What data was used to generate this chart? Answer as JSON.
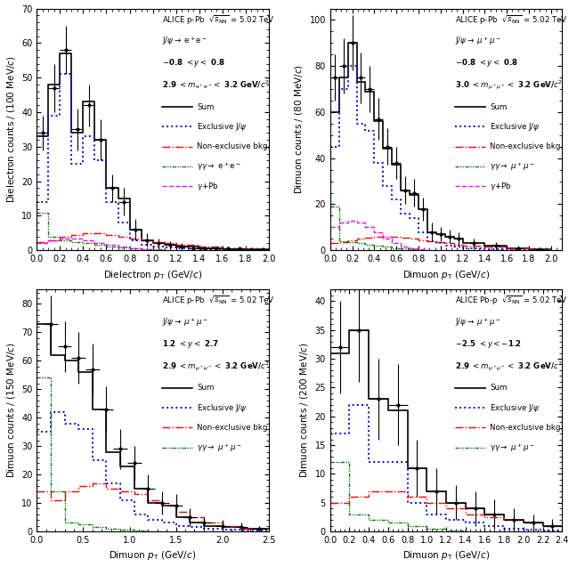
{
  "panels": [
    {
      "title_line1": "ALICE p-Pb  $\\sqrt{s_{\\rm NN}}$ = 5.02 TeV",
      "title_line2": "J/$\\psi\\rightarrow$ e$^+$e$^-$",
      "title_line3": "$-$0.8 $< y <$ 0.8",
      "title_line4": "2.9 $< m_{\\rm e^+e^-} <$ 3.2 GeV/$c^2$",
      "ylabel": "Dielectron counts / (100 MeV/$c$)",
      "xlabel": "Dielectron $p_{\\rm T}$ (GeV/$c$)",
      "xlim": [
        0,
        2
      ],
      "ylim": [
        0,
        70
      ],
      "yticks": [
        0,
        10,
        20,
        30,
        40,
        50,
        60,
        70
      ],
      "xticks": [
        0,
        0.2,
        0.4,
        0.6,
        0.8,
        1.0,
        1.2,
        1.4,
        1.6,
        1.8,
        2.0
      ],
      "has_gamma_pb": true,
      "gamma_label": "$\\gamma\\gamma\\rightarrow$ e$^+$e$^-$",
      "data_x": [
        0.05,
        0.15,
        0.25,
        0.35,
        0.45,
        0.55,
        0.65,
        0.75,
        0.85,
        0.95,
        1.05,
        1.15,
        1.25,
        1.35,
        1.45,
        1.55,
        1.65,
        1.75,
        1.85,
        1.95
      ],
      "data_y": [
        34,
        47,
        58,
        35,
        42,
        32,
        18,
        14,
        6,
        3,
        2,
        1.5,
        1,
        0.5,
        0.5,
        0.5,
        0.5,
        0.5,
        0.3,
        0.2
      ],
      "data_yerr": [
        5,
        7,
        7,
        6,
        6,
        6,
        4,
        4,
        3,
        2,
        1.5,
        1.2,
        1,
        0.8,
        0.7,
        0.6,
        0.5,
        0.4,
        0.4,
        0.3
      ],
      "data_xerr": 0.05,
      "sum_edges": [
        0,
        0.1,
        0.2,
        0.3,
        0.4,
        0.5,
        0.6,
        0.7,
        0.8,
        0.9,
        1.0,
        1.1,
        1.2,
        1.4,
        1.6,
        1.8,
        2.0
      ],
      "sum_vals": [
        33,
        48,
        57,
        34,
        43,
        32,
        18,
        15,
        6,
        3,
        2,
        1.5,
        1,
        0.5,
        0.3,
        0.2
      ],
      "excl_edges": [
        0,
        0.1,
        0.2,
        0.3,
        0.4,
        0.5,
        0.6,
        0.7,
        0.8,
        0.9,
        1.0,
        1.1,
        1.2,
        1.4,
        1.6,
        1.8,
        2.0
      ],
      "excl_vals": [
        14,
        39,
        51,
        25,
        33,
        26,
        14,
        8,
        3,
        1.5,
        1,
        0.8,
        0.5,
        0.2,
        0.1,
        0.05
      ],
      "nonexcl_edges": [
        0,
        0.1,
        0.2,
        0.3,
        0.4,
        0.5,
        0.6,
        0.7,
        0.8,
        0.9,
        1.0,
        1.1,
        1.2,
        1.4,
        1.6,
        1.8,
        2.0
      ],
      "nonexcl_vals": [
        2.5,
        3,
        4,
        4.5,
        5,
        5,
        4.5,
        4,
        3.5,
        3,
        2.5,
        2,
        1.5,
        1,
        0.5,
        0.2
      ],
      "gg_edges": [
        0,
        0.1,
        0.2,
        0.3,
        0.4,
        0.5,
        0.6,
        0.7,
        0.8,
        0.9,
        1.0,
        1.1
      ],
      "gg_vals": [
        11,
        4,
        3,
        2.5,
        2,
        1.5,
        1,
        0.8,
        0.5,
        0.3,
        0.2
      ],
      "gpb_edges": [
        0,
        0.1,
        0.2,
        0.3,
        0.4,
        0.5,
        0.6,
        0.7,
        0.8,
        0.9,
        1.0,
        1.1
      ],
      "gpb_vals": [
        2,
        3,
        3.5,
        3.5,
        3,
        2,
        1.5,
        1,
        0.5,
        0.3,
        0.1
      ]
    },
    {
      "title_line1": "ALICE p-Pb  $\\sqrt{s_{\\rm NN}}$ = 5.02 TeV",
      "title_line2": "J/$\\psi\\rightarrow$ $\\mu^+\\mu^-$",
      "title_line3": "$-$0.8 $< y <$ 0.8",
      "title_line4": "3.0 $< m_{\\mu^+\\mu^-} <$ 3.2 GeV/$c^2$",
      "ylabel": "Dimuon counts / (80 MeV/$c$)",
      "xlabel": "Dimuon $p_{\\rm T}$ (GeV/$c$)",
      "xlim": [
        0,
        2.1
      ],
      "ylim": [
        0,
        105
      ],
      "yticks": [
        0,
        20,
        40,
        60,
        80,
        100
      ],
      "xticks": [
        0,
        0.2,
        0.4,
        0.6,
        0.8,
        1.0,
        1.2,
        1.4,
        1.6,
        1.8,
        2.0
      ],
      "has_gamma_pb": true,
      "gamma_label": "$\\gamma\\gamma\\rightarrow$ $\\mu^+\\mu^-$",
      "data_x": [
        0.04,
        0.12,
        0.2,
        0.28,
        0.36,
        0.44,
        0.52,
        0.6,
        0.68,
        0.76,
        0.84,
        0.92,
        1.0,
        1.08,
        1.16,
        1.3,
        1.5,
        1.7,
        1.9
      ],
      "data_y": [
        75,
        80,
        90,
        75,
        70,
        57,
        45,
        38,
        26,
        25,
        18,
        8,
        7,
        6,
        5,
        3,
        2,
        1,
        0.5
      ],
      "data_yerr": [
        10,
        12,
        12,
        11,
        10,
        9,
        8,
        7,
        6,
        6,
        5,
        4,
        3,
        3,
        3,
        2,
        1.5,
        1,
        0.5
      ],
      "data_xerr": 0.04,
      "sum_edges": [
        0,
        0.08,
        0.16,
        0.24,
        0.32,
        0.4,
        0.48,
        0.56,
        0.64,
        0.72,
        0.8,
        0.88,
        0.96,
        1.04,
        1.12,
        1.2,
        1.4,
        1.6,
        1.8,
        2.0
      ],
      "sum_vals": [
        60,
        75,
        90,
        73,
        69,
        56,
        44,
        37,
        26,
        24,
        18,
        8,
        7,
        6,
        5,
        3,
        2,
        1,
        0.5
      ],
      "excl_edges": [
        0,
        0.08,
        0.16,
        0.24,
        0.32,
        0.4,
        0.48,
        0.56,
        0.64,
        0.72,
        0.8,
        0.88,
        0.96,
        1.04,
        1.12,
        1.2,
        1.4,
        1.6,
        1.8,
        2.0
      ],
      "excl_vals": [
        45,
        70,
        80,
        55,
        52,
        38,
        28,
        22,
        16,
        14,
        8,
        4,
        3,
        2,
        1.5,
        1,
        0.5,
        0.2,
        0.1
      ],
      "nonexcl_edges": [
        0,
        0.08,
        0.16,
        0.24,
        0.32,
        0.4,
        0.48,
        0.56,
        0.64,
        0.72,
        0.8,
        0.88,
        0.96,
        1.04,
        1.12,
        1.2,
        1.4,
        1.6,
        1.8,
        2.0
      ],
      "nonexcl_vals": [
        3,
        3.5,
        4.5,
        5,
        5.5,
        6,
        6,
        6,
        5.5,
        5,
        4.5,
        4,
        3.5,
        3,
        2.5,
        2,
        1.5,
        1,
        0.5
      ],
      "gg_edges": [
        0,
        0.08,
        0.16,
        0.24,
        0.32,
        0.4,
        0.48,
        0.56,
        0.64,
        0.72,
        0.8,
        0.88
      ],
      "gg_vals": [
        19,
        4,
        3.5,
        3,
        2.5,
        2,
        1.5,
        1,
        0.7,
        0.4,
        0.2
      ],
      "gpb_edges": [
        0,
        0.08,
        0.16,
        0.24,
        0.32,
        0.4,
        0.48,
        0.56,
        0.64,
        0.72,
        0.8,
        0.88
      ],
      "gpb_vals": [
        10,
        12,
        13,
        12,
        10,
        8,
        5,
        3,
        1.5,
        0.8,
        0.3
      ]
    },
    {
      "title_line1": "ALICE p-Pb  $\\sqrt{s_{\\rm NN}}$ = 5.02 TeV",
      "title_line2": "J/$\\psi\\rightarrow$ $\\mu^+\\mu^-$",
      "title_line3": "1.2 $< y <$ 2.7",
      "title_line4": "2.9 $< m_{\\mu^+\\mu^-} <$ 3.2 GeV/$c^2$",
      "ylabel": "Dimuon counts / (150 MeV/$c$)",
      "xlabel": "Dimuon $p_{\\rm T}$ (GeV/$c$)",
      "xlim": [
        0,
        2.5
      ],
      "ylim": [
        0,
        85
      ],
      "yticks": [
        0,
        10,
        20,
        30,
        40,
        50,
        60,
        70,
        80
      ],
      "xticks": [
        0,
        0.5,
        1.0,
        1.5,
        2.0,
        2.5
      ],
      "has_gamma_pb": false,
      "gamma_label": "$\\gamma\\gamma\\rightarrow$ $\\mu^+\\mu^-$",
      "data_x": [
        0.15,
        0.3,
        0.45,
        0.6,
        0.75,
        0.9,
        1.05,
        1.2,
        1.35,
        1.5,
        1.65,
        1.8,
        2.0,
        2.2,
        2.4
      ],
      "data_y": [
        73,
        65,
        61,
        57,
        43,
        29,
        24,
        15,
        10,
        9,
        5,
        3,
        2,
        1.5,
        1
      ],
      "data_yerr": [
        10,
        9,
        9,
        9,
        8,
        7,
        6,
        5,
        4,
        4,
        3,
        2,
        2,
        1.5,
        1
      ],
      "data_xerr": 0.075,
      "sum_edges": [
        0,
        0.15,
        0.3,
        0.45,
        0.6,
        0.75,
        0.9,
        1.05,
        1.2,
        1.35,
        1.5,
        1.65,
        1.8,
        2.0,
        2.2,
        2.5
      ],
      "sum_vals": [
        73,
        62,
        60,
        56,
        43,
        28,
        23,
        15,
        10,
        9,
        5,
        3,
        2,
        1.5,
        1
      ],
      "excl_edges": [
        0,
        0.15,
        0.3,
        0.45,
        0.6,
        0.75,
        0.9,
        1.05,
        1.2,
        1.35,
        1.5,
        1.65,
        1.8,
        2.0,
        2.2,
        2.5
      ],
      "excl_vals": [
        35,
        42,
        38,
        36,
        25,
        17,
        11,
        6,
        4,
        3,
        2,
        1.5,
        1,
        0.5,
        0.2
      ],
      "nonexcl_edges": [
        0,
        0.15,
        0.3,
        0.45,
        0.6,
        0.75,
        0.9,
        1.05,
        1.2,
        1.35,
        1.5,
        1.65,
        1.8,
        2.0,
        2.2,
        2.5
      ],
      "nonexcl_vals": [
        14,
        11,
        14,
        16,
        17,
        15,
        14,
        13,
        11,
        9,
        7,
        5,
        3,
        2,
        1
      ],
      "gg_edges": [
        0,
        0.15,
        0.3,
        0.45,
        0.6,
        0.75,
        0.9,
        1.05,
        1.2,
        1.35
      ],
      "gg_vals": [
        54,
        14,
        3,
        2.5,
        1.5,
        1,
        0.5,
        0.3,
        0.1
      ],
      "gpb_edges": [],
      "gpb_vals": []
    },
    {
      "title_line1": "ALICE Pb-p  $\\sqrt{s_{\\rm NN}}$ = 5.02 TeV",
      "title_line2": "J/$\\psi\\rightarrow$ $\\mu^+\\mu^-$",
      "title_line3": "$-$2.5 $< y < -$1.2",
      "title_line4": "2.9 $< m_{\\mu^+\\mu^-} <$ 3.2 GeV/$c^2$",
      "ylabel": "Dimuon counts / (200 MeV/$c$)",
      "xlabel": "Dimuon $p_{\\rm T}$ (GeV/$c$)",
      "xlim": [
        0,
        2.4
      ],
      "ylim": [
        0,
        42
      ],
      "yticks": [
        0,
        5,
        10,
        15,
        20,
        25,
        30,
        35,
        40
      ],
      "xticks": [
        0,
        0.2,
        0.4,
        0.6,
        0.8,
        1.0,
        1.2,
        1.4,
        1.6,
        1.8,
        2.0,
        2.2,
        2.4
      ],
      "has_gamma_pb": false,
      "gamma_label": "$\\gamma\\gamma\\rightarrow$ $\\mu^+\\mu^-$",
      "data_x": [
        0.1,
        0.3,
        0.5,
        0.7,
        0.9,
        1.1,
        1.3,
        1.5,
        1.7,
        1.9,
        2.1,
        2.3
      ],
      "data_y": [
        32,
        35,
        23,
        22,
        11,
        7,
        5,
        4,
        3,
        2,
        1.5,
        1
      ],
      "data_yerr": [
        8,
        9,
        7,
        7,
        5,
        4,
        3,
        3,
        2.5,
        2,
        1.5,
        1.2
      ],
      "data_xerr": 0.1,
      "sum_edges": [
        0,
        0.2,
        0.4,
        0.6,
        0.8,
        1.0,
        1.2,
        1.4,
        1.6,
        1.8,
        2.0,
        2.2,
        2.4
      ],
      "sum_vals": [
        31,
        35,
        23,
        21,
        11,
        7,
        5,
        4,
        3,
        2,
        1.5,
        1
      ],
      "excl_edges": [
        0,
        0.2,
        0.4,
        0.6,
        0.8,
        1.0,
        1.2,
        1.4,
        1.6,
        1.8,
        2.0,
        2.2,
        2.4
      ],
      "excl_vals": [
        17,
        22,
        12,
        12,
        5,
        3,
        2,
        1.5,
        1,
        0.5,
        0.3,
        0.2
      ],
      "nonexcl_edges": [
        0,
        0.2,
        0.4,
        0.6,
        0.8,
        1.0,
        1.2,
        1.4,
        1.6,
        1.8,
        2.0,
        2.2,
        2.4
      ],
      "nonexcl_vals": [
        5,
        6,
        7,
        7,
        6,
        5,
        4,
        3,
        2.5,
        2,
        1.5,
        1
      ],
      "gg_edges": [
        0,
        0.2,
        0.4,
        0.6,
        0.8,
        1.0,
        1.2,
        1.4
      ],
      "gg_vals": [
        12,
        3,
        2,
        1.5,
        1,
        0.5,
        0.2
      ],
      "gpb_edges": [],
      "gpb_vals": []
    }
  ]
}
